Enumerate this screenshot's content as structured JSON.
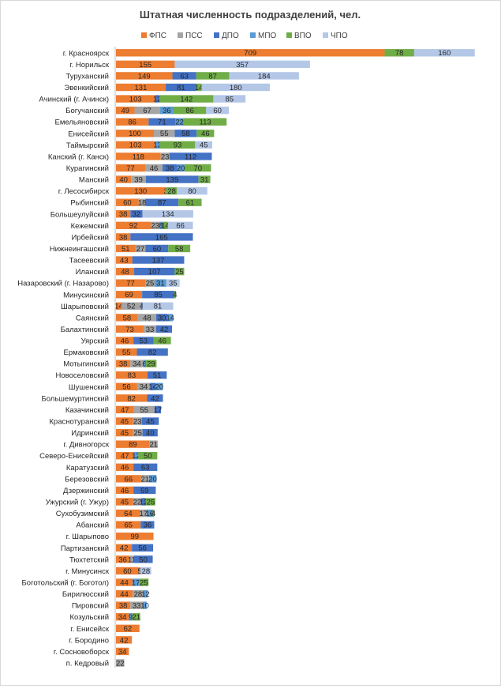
{
  "chart_data": {
    "type": "bar",
    "orientation": "horizontal",
    "stacked": true,
    "title": "Штатная численность подразделений, чел.",
    "legend_position": "top",
    "grid": false,
    "categories": [
      "г. Красноярск",
      "г. Норильск",
      "Туруханский",
      "Эвенкийский",
      "Ачинский (г. Ачинск)",
      "Богучанский",
      "Емельяновский",
      "Енисейский",
      "Таймырский",
      "Канский (г. Канск)",
      "Курагинский",
      "Манский",
      "г. Лесосибирск",
      "Рыбинский",
      "Большеулуйский",
      "Кежемский",
      "Ирбейский",
      "Нижнеингашский",
      "Тасеевский",
      "Иланский",
      "Назаровский (г. Назарово)",
      "Минусинский",
      "Шарыповский",
      "Саянский",
      "Балахтинский",
      "Уярский",
      "Ермаковский",
      "Мотыгинский",
      "Новоселовский",
      "Шушенский",
      "Большемуртинский",
      "Казачинский",
      "Краснотуранский",
      "Идринский",
      "г. Дивногорск",
      "Северо-Енисейский",
      "Каратузский",
      "Березовский",
      "Дзержинский",
      "Ужурский (г. Ужур)",
      "Сухобузимский",
      "Абанский",
      "г. Шарыпово",
      "Партизанский",
      "Тюхтетский",
      "г. Минусинск",
      "Боготольский (г. Боготол)",
      "Бирилюсский",
      "Пировский",
      "Козульский",
      "г. Енисейск",
      "г. Бородино",
      "г. Сосновоборск",
      "п. Кедровый"
    ],
    "series": [
      {
        "name": "ФПС",
        "color": "#ED7D31",
        "values": [
          709,
          155,
          149,
          131,
          103,
          49,
          86,
          100,
          103,
          118,
          77,
          40,
          130,
          60,
          38,
          92,
          38,
          51,
          43,
          48,
          77,
          69,
          14,
          58,
          73,
          46,
          55,
          38,
          83,
          56,
          82,
          47,
          45,
          45,
          89,
          47,
          46,
          66,
          46,
          45,
          64,
          65,
          99,
          42,
          36,
          60,
          44,
          44,
          38,
          34,
          62,
          42,
          34,
          0
        ]
      },
      {
        "name": "ПСС",
        "color": "#A5A5A5",
        "values": [
          0,
          0,
          0,
          0,
          0,
          67,
          0,
          55,
          0,
          23,
          46,
          39,
          3,
          18,
          0,
          23,
          0,
          27,
          0,
          0,
          25,
          0,
          52,
          48,
          33,
          0,
          0,
          34,
          0,
          34,
          0,
          55,
          23,
          25,
          21,
          0,
          0,
          21,
          0,
          22,
          17,
          0,
          0,
          0,
          11,
          5,
          0,
          28,
          33,
          0,
          0,
          0,
          0,
          22
        ]
      },
      {
        "name": "ДПО",
        "color": "#4472C4",
        "values": [
          0,
          0,
          63,
          81,
          12,
          0,
          71,
          58,
          0,
          112,
          38,
          139,
          0,
          87,
          32,
          0,
          165,
          60,
          137,
          107,
          0,
          85,
          4,
          30,
          42,
          53,
          82,
          0,
          51,
          14,
          42,
          17,
          45,
          40,
          0,
          0,
          63,
          0,
          59,
          12,
          0,
          36,
          0,
          56,
          50,
          0,
          0,
          0,
          0,
          0,
          0,
          0,
          0,
          0
        ]
      },
      {
        "name": "МПО",
        "color": "#5B9BD5",
        "values": [
          0,
          0,
          0,
          0,
          0,
          36,
          22,
          0,
          13,
          0,
          20,
          0,
          0,
          0,
          0,
          8,
          0,
          0,
          0,
          0,
          31,
          0,
          0,
          14,
          0,
          0,
          0,
          6,
          0,
          20,
          0,
          0,
          0,
          0,
          0,
          12,
          0,
          20,
          0,
          0,
          16,
          0,
          0,
          0,
          0,
          0,
          17,
          12,
          10,
          9,
          0,
          0,
          0,
          0
        ]
      },
      {
        "name": "ВПО",
        "color": "#70AD47",
        "values": [
          78,
          0,
          87,
          14,
          142,
          86,
          113,
          46,
          93,
          0,
          70,
          31,
          28,
          61,
          0,
          14,
          0,
          58,
          0,
          25,
          0,
          4,
          0,
          0,
          0,
          46,
          0,
          29,
          0,
          0,
          0,
          0,
          0,
          0,
          0,
          50,
          0,
          0,
          0,
          25,
          4,
          0,
          0,
          0,
          0,
          0,
          25,
          0,
          0,
          21,
          0,
          0,
          0,
          0
        ]
      },
      {
        "name": "ЧПО",
        "color": "#B4C7E7",
        "values": [
          160,
          357,
          184,
          180,
          85,
          60,
          0,
          0,
          45,
          0,
          0,
          0,
          80,
          0,
          134,
          66,
          0,
          0,
          0,
          0,
          35,
          0,
          81,
          0,
          0,
          0,
          0,
          0,
          0,
          0,
          0,
          0,
          0,
          0,
          0,
          0,
          0,
          0,
          0,
          0,
          0,
          0,
          0,
          0,
          0,
          28,
          0,
          0,
          0,
          0,
          0,
          0,
          0,
          0
        ]
      }
    ]
  }
}
